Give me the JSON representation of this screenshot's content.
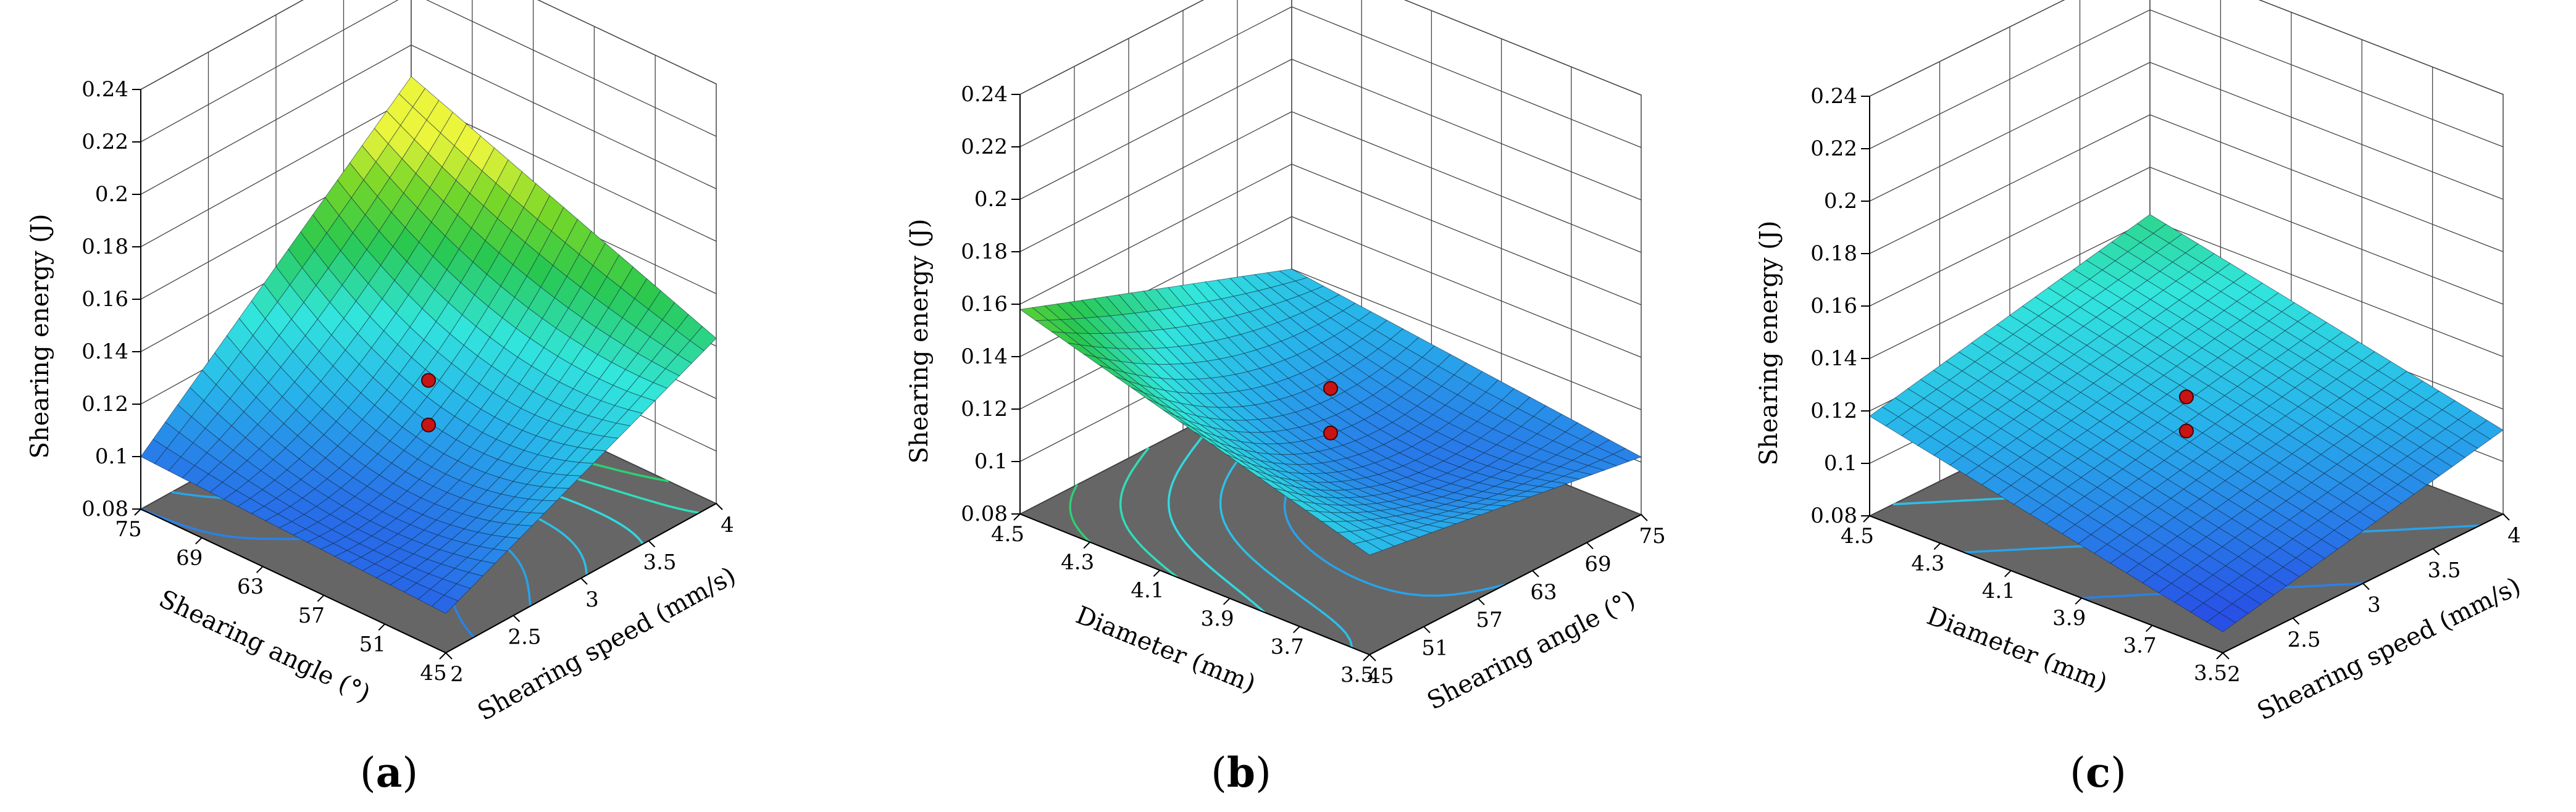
{
  "chart_data": [
    {
      "type": "surface3d",
      "panel_label": "a",
      "x": {
        "label": "Shearing speed (mm/s)",
        "ticks": [
          "2",
          "2.5",
          "3",
          "3.5",
          "4"
        ],
        "range": [
          2,
          4
        ]
      },
      "y": {
        "label": "Shearing angle (°)",
        "ticks": [
          "45",
          "51",
          "57",
          "63",
          "69",
          "75"
        ],
        "range": [
          45,
          75
        ]
      },
      "z": {
        "label": "Shearing energy (J)",
        "ticks": [
          "0.08",
          "0.1",
          "0.12",
          "0.14",
          "0.16",
          "0.18",
          "0.2",
          "0.22",
          "0.24"
        ],
        "range": [
          0.08,
          0.24
        ]
      },
      "corners": {
        "x_min_y_min": 0.095,
        "x_max_y_min": 0.143,
        "x_min_y_max": 0.1,
        "x_max_y_max": 0.188
      },
      "center": 0.112,
      "design_points": [
        0.128,
        0.111
      ],
      "grid": true
    },
    {
      "type": "surface3d",
      "panel_label": "b",
      "x": {
        "label": "Shearing angle (°)",
        "ticks": [
          "45",
          "51",
          "57",
          "63",
          "69",
          "75"
        ],
        "range": [
          45,
          75
        ]
      },
      "y": {
        "label": "Diameter (mm)",
        "ticks": [
          "3.5",
          "3.7",
          "3.9",
          "4.1",
          "4.3",
          "4.5"
        ],
        "range": [
          3.5,
          4.5
        ]
      },
      "z": {
        "label": "Shearing energy (J)",
        "ticks": [
          "0.08",
          "0.1",
          "0.12",
          "0.14",
          "0.16",
          "0.18",
          "0.2",
          "0.22",
          "0.24"
        ],
        "range": [
          0.08,
          0.24
        ]
      },
      "corners": {
        "x_min_y_min": 0.118,
        "x_max_y_min": 0.102,
        "x_min_y_max": 0.158,
        "x_max_y_max": 0.12
      },
      "center": 0.105,
      "design_points": [
        0.128,
        0.111
      ],
      "grid": true
    },
    {
      "type": "surface3d",
      "panel_label": "c",
      "x": {
        "label": "Shearing speed (mm/s)",
        "ticks": [
          "2",
          "2.5",
          "3",
          "3.5",
          "4"
        ],
        "range": [
          2,
          4
        ]
      },
      "y": {
        "label": "Diameter (mm)",
        "ticks": [
          "3.5",
          "3.7",
          "3.9",
          "4.1",
          "4.3",
          "4.5"
        ],
        "range": [
          3.5,
          4.5
        ]
      },
      "z": {
        "label": "Shearing energy (J)",
        "ticks": [
          "0.08",
          "0.1",
          "0.12",
          "0.14",
          "0.16",
          "0.18",
          "0.2",
          "0.22",
          "0.24"
        ],
        "range": [
          0.08,
          0.24
        ]
      },
      "corners": {
        "x_min_y_min": 0.088,
        "x_max_y_min": 0.112,
        "x_min_y_max": 0.118,
        "x_max_y_max": 0.142
      },
      "center": 0.115,
      "design_points": [
        0.125,
        0.112
      ],
      "grid": true
    }
  ]
}
